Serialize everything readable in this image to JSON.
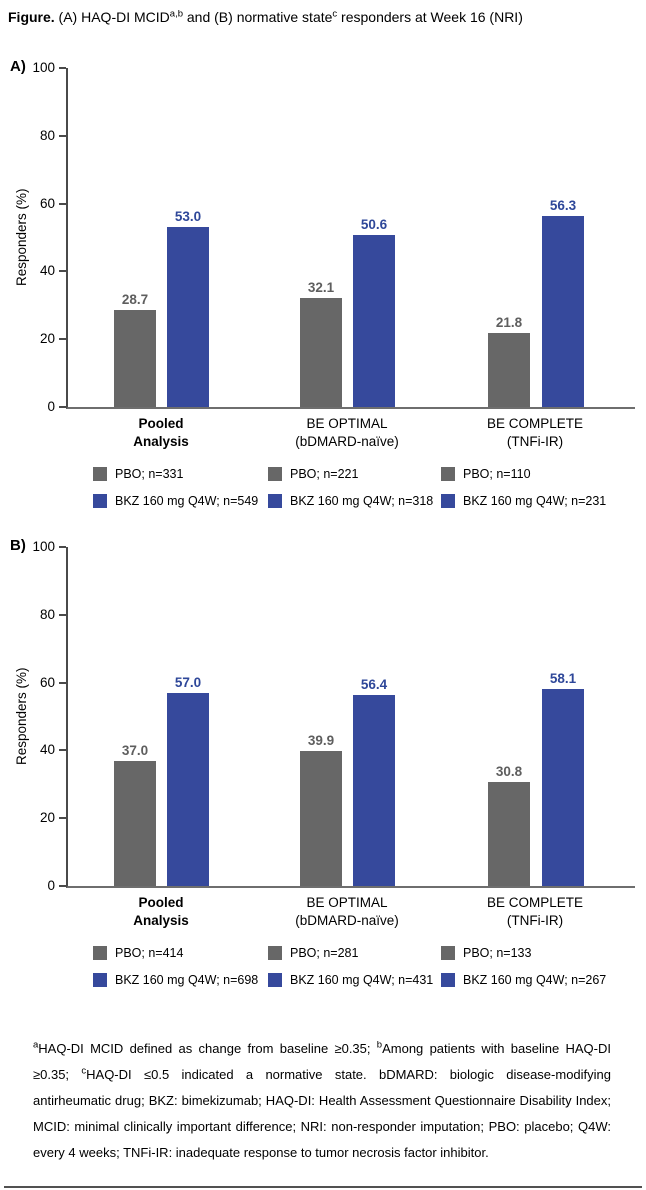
{
  "title": {
    "prefix": "Figure.",
    "part1": " (A) HAQ-DI MCID",
    "sup1": "a,b",
    "part2": " and (B) normative state",
    "sup2": "c",
    "part3": " responders at Week 16 (NRI)"
  },
  "y_axis": {
    "label": "Responders (%)",
    "ticks": [
      0,
      20,
      40,
      60,
      80,
      100
    ],
    "max": 100
  },
  "categories": [
    {
      "line1": "Pooled",
      "line2": "Analysis",
      "bold": true
    },
    {
      "line1": "BE OPTIMAL",
      "line2": "(bDMARD-naïve)",
      "bold": false
    },
    {
      "line1": "BE COMPLETE",
      "line2": "(TNFi-IR)",
      "bold": false
    }
  ],
  "colors": {
    "pbo_bar": "#676767",
    "bkz_bar": "#36499C",
    "pbo_value": "#5E5E5E",
    "bkz_value": "#2E4799",
    "y_axis_line": "#4A4A4A",
    "x_axis_line": "#6E6E6E",
    "text": "#000000"
  },
  "chart_data": [
    {
      "type": "bar",
      "panel_label": "A)",
      "description": "HAQ-DI MCID responders at Week 16 (NRI)",
      "ylabel": "Responders (%)",
      "ylim": [
        0,
        100
      ],
      "grid": false,
      "legend_position": "below",
      "categories": [
        "Pooled Analysis",
        "BE OPTIMAL (bDMARD-naïve)",
        "BE COMPLETE (TNFi-IR)"
      ],
      "series": [
        {
          "name": "PBO",
          "color": "#676767",
          "values": [
            28.7,
            32.1,
            21.8
          ],
          "labels": [
            "28.7",
            "32.1",
            "21.8"
          ],
          "n": [
            331,
            221,
            110
          ]
        },
        {
          "name": "BKZ 160 mg Q4W",
          "color": "#36499C",
          "values": [
            53.0,
            50.6,
            56.3
          ],
          "labels": [
            "53.0",
            "50.6",
            "56.3"
          ],
          "n": [
            549,
            318,
            231
          ]
        }
      ],
      "legend": [
        [
          "PBO; n=331",
          "BKZ 160 mg Q4W; n=549"
        ],
        [
          "PBO; n=221",
          "BKZ 160 mg Q4W; n=318"
        ],
        [
          "PBO; n=110",
          "BKZ 160 mg Q4W; n=231"
        ]
      ]
    },
    {
      "type": "bar",
      "panel_label": "B)",
      "description": "Normative state responders at Week 16 (NRI)",
      "ylabel": "Responders (%)",
      "ylim": [
        0,
        100
      ],
      "grid": false,
      "legend_position": "below",
      "categories": [
        "Pooled Analysis",
        "BE OPTIMAL (bDMARD-naïve)",
        "BE COMPLETE (TNFi-IR)"
      ],
      "series": [
        {
          "name": "PBO",
          "color": "#676767",
          "values": [
            37.0,
            39.9,
            30.8
          ],
          "labels": [
            "37.0",
            "39.9",
            "30.8"
          ],
          "n": [
            414,
            281,
            133
          ]
        },
        {
          "name": "BKZ 160 mg Q4W",
          "color": "#36499C",
          "values": [
            57.0,
            56.4,
            58.1
          ],
          "labels": [
            "57.0",
            "56.4",
            "58.1"
          ],
          "n": [
            698,
            431,
            267
          ]
        }
      ],
      "legend": [
        [
          "PBO; n=414",
          "BKZ 160 mg Q4W; n=698"
        ],
        [
          "PBO; n=281",
          "BKZ 160 mg Q4W; n=431"
        ],
        [
          "PBO; n=133",
          "BKZ 160 mg Q4W; n=267"
        ]
      ]
    }
  ],
  "footnote": {
    "segments": [
      {
        "sup": "a"
      },
      {
        "text": "HAQ-DI MCID defined as change from baseline ≥0.35; "
      },
      {
        "sup": "b"
      },
      {
        "text": "Among patients with baseline HAQ-DI ≥0.35; "
      },
      {
        "sup": "c"
      },
      {
        "text": "HAQ-DI ≤0.5 indicated a normative state. bDMARD: biologic disease-modifying antirheumatic drug; BKZ: bimekizumab; HAQ-DI: Health Assessment Questionnaire Disability Index; MCID: minimal clinically important difference; NRI: non-responder imputation; PBO: placebo; Q4W: every 4 weeks; TNFi-IR: inadequate response to tumor necrosis factor inhibitor."
      }
    ]
  }
}
